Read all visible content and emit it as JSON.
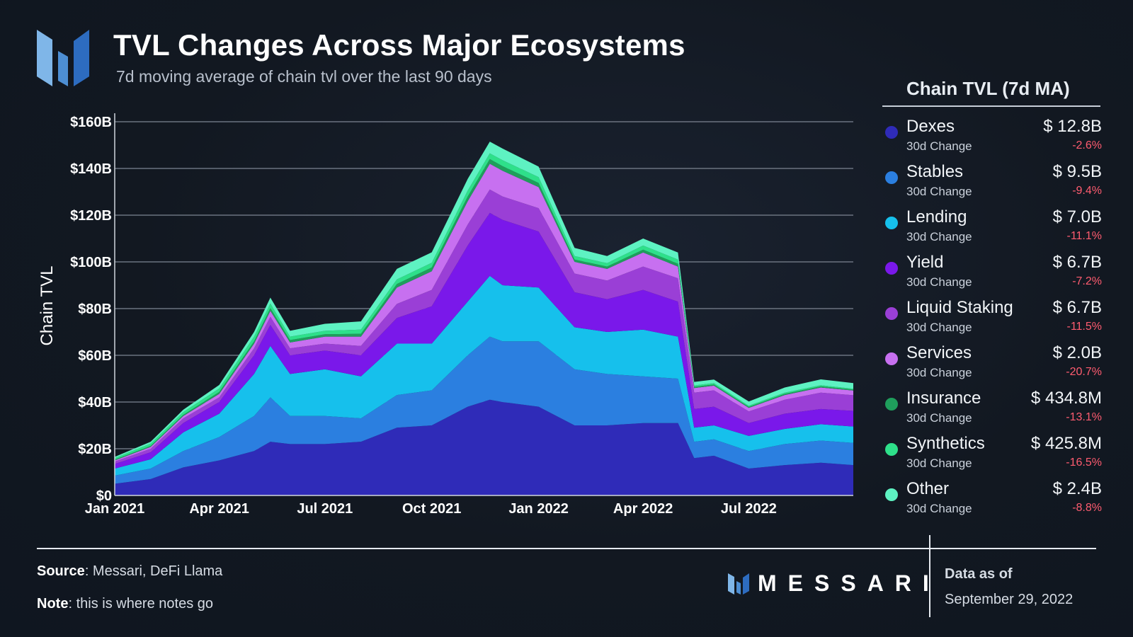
{
  "header": {
    "title": "TVL Changes Across Major Ecosystems",
    "subtitle": "7d moving average of chain tvl over the last 90 days"
  },
  "colors": {
    "dexes": "#2f2bb8",
    "stables": "#2b7fe0",
    "lending": "#16c0ec",
    "yield": "#7a18ea",
    "liquid_staking": "#9a3fd6",
    "services": "#c770f0",
    "insurance": "#1f9e5c",
    "synthetics": "#2ee08a",
    "other": "#5ef2c2"
  },
  "legend": {
    "title": "Chain TVL (7d MA)",
    "change_label": "30d Change",
    "items": [
      {
        "name": "Dexes",
        "value": "$ 12.8B",
        "change": "-2.6%",
        "color": "#2f2bb8"
      },
      {
        "name": "Stables",
        "value": "$ 9.5B",
        "change": "-9.4%",
        "color": "#2b7fe0"
      },
      {
        "name": "Lending",
        "value": "$ 7.0B",
        "change": "-11.1%",
        "color": "#16c0ec"
      },
      {
        "name": "Yield",
        "value": "$ 6.7B",
        "change": "-7.2%",
        "color": "#7a18ea"
      },
      {
        "name": "Liquid Staking",
        "value": "$ 6.7B",
        "change": "-11.5%",
        "color": "#9a3fd6"
      },
      {
        "name": "Services",
        "value": "$ 2.0B",
        "change": "-20.7%",
        "color": "#c770f0"
      },
      {
        "name": "Insurance",
        "value": "$ 434.8M",
        "change": "-13.1%",
        "color": "#1f9e5c"
      },
      {
        "name": "Synthetics",
        "value": "$ 425.8M",
        "change": "-16.5%",
        "color": "#2ee08a"
      },
      {
        "name": "Other",
        "value": "$ 2.4B",
        "change": "-8.8%",
        "color": "#5ef2c2"
      }
    ]
  },
  "footer": {
    "source_label": "Source",
    "source_text": ": Messari, DeFi Llama",
    "note_label": "Note",
    "note_text": ": this is where notes go",
    "brand": "MESSARI",
    "as_of_label": "Data as of",
    "as_of_date": "September 29, 2022"
  },
  "chart_data": {
    "type": "area",
    "stacked": true,
    "title": "TVL Changes Across Major Ecosystems",
    "subtitle": "7d moving average of chain tvl over the last 90 days",
    "ylabel": "Chain TVL",
    "xlabel": "",
    "ylim": [
      0,
      160
    ],
    "y_unit": "B USD",
    "yticks": [
      "$0",
      "$20B",
      "$40B",
      "$60B",
      "$80B",
      "$100B",
      "$120B",
      "$140B",
      "$160B"
    ],
    "xticks": [
      "Jan 2021",
      "Apr 2021",
      "Jul 2021",
      "Oct 2021",
      "Jan 2022",
      "Apr 2022",
      "Jul 2022"
    ],
    "grid": "horizontal",
    "x": [
      "2021-01-01",
      "2021-02-01",
      "2021-03-01",
      "2021-04-01",
      "2021-05-01",
      "2021-05-15",
      "2021-06-01",
      "2021-07-01",
      "2021-08-01",
      "2021-09-01",
      "2021-10-01",
      "2021-11-01",
      "2021-11-20",
      "2021-12-01",
      "2022-01-01",
      "2022-02-01",
      "2022-03-01",
      "2022-04-01",
      "2022-05-01",
      "2022-05-15",
      "2022-06-01",
      "2022-07-01",
      "2022-08-01",
      "2022-09-01",
      "2022-09-29"
    ],
    "series": [
      {
        "name": "Dexes",
        "values": [
          5.0,
          7.0,
          12.0,
          15.0,
          19.0,
          23.0,
          22.0,
          22.0,
          23.0,
          29.0,
          30.0,
          38.0,
          41.0,
          40.0,
          38.0,
          30.0,
          30.0,
          31.0,
          31.0,
          16.0,
          17.0,
          11.5,
          13.0,
          14.0,
          13.0
        ]
      },
      {
        "name": "Stables",
        "values": [
          3.5,
          4.5,
          7.0,
          10.0,
          15.0,
          19.0,
          12.0,
          12.0,
          10.0,
          14.0,
          15.0,
          22.0,
          27.0,
          26.0,
          28.0,
          24.0,
          22.0,
          20.0,
          19.0,
          7.0,
          7.0,
          7.5,
          9.0,
          9.5,
          9.5
        ]
      },
      {
        "name": "Lending",
        "values": [
          3.0,
          4.0,
          8.0,
          10.0,
          18.0,
          22.0,
          18.0,
          20.0,
          18.0,
          22.0,
          20.0,
          23.0,
          26.0,
          24.0,
          23.0,
          18.0,
          18.0,
          20.0,
          18.0,
          6.0,
          6.0,
          6.5,
          6.5,
          7.0,
          7.0
        ]
      },
      {
        "name": "Yield",
        "values": [
          2.0,
          3.0,
          4.0,
          5.0,
          8.0,
          9.0,
          8.0,
          8.0,
          9.0,
          11.0,
          16.0,
          24.0,
          27.0,
          28.0,
          24.0,
          15.0,
          14.0,
          17.0,
          15.0,
          8.0,
          8.0,
          5.5,
          6.5,
          6.5,
          6.7
        ]
      },
      {
        "name": "Liquid Staking",
        "values": [
          1.0,
          1.5,
          2.0,
          2.0,
          3.0,
          3.5,
          3.0,
          3.0,
          4.0,
          6.0,
          7.0,
          9.0,
          10.0,
          10.0,
          10.0,
          8.0,
          8.0,
          10.0,
          10.0,
          7.0,
          7.0,
          5.0,
          6.0,
          7.0,
          6.7
        ]
      },
      {
        "name": "Services",
        "values": [
          0.5,
          0.8,
          1.0,
          1.5,
          2.0,
          2.5,
          2.5,
          3.0,
          4.0,
          7.0,
          8.0,
          10.0,
          11.0,
          11.0,
          9.0,
          5.0,
          5.0,
          6.0,
          5.0,
          2.0,
          2.0,
          1.5,
          2.0,
          2.2,
          2.0
        ]
      },
      {
        "name": "Insurance",
        "values": [
          0.3,
          0.4,
          0.5,
          0.8,
          1.0,
          1.2,
          1.0,
          1.0,
          1.2,
          1.5,
          1.6,
          2.0,
          2.0,
          2.0,
          1.8,
          1.0,
          1.0,
          1.2,
          1.2,
          0.5,
          0.5,
          0.4,
          0.5,
          0.5,
          0.4
        ]
      },
      {
        "name": "Synthetics",
        "values": [
          0.7,
          1.0,
          1.2,
          1.5,
          2.0,
          2.0,
          1.5,
          1.5,
          1.8,
          2.0,
          2.0,
          2.5,
          2.5,
          2.5,
          2.5,
          1.5,
          1.5,
          1.8,
          1.8,
          0.6,
          0.6,
          0.5,
          0.5,
          0.5,
          0.4
        ]
      },
      {
        "name": "Other",
        "values": [
          0.5,
          0.8,
          1.0,
          1.5,
          2.0,
          2.5,
          2.5,
          3.0,
          3.5,
          4.5,
          4.5,
          5.0,
          5.0,
          5.0,
          4.5,
          3.5,
          3.0,
          3.0,
          3.0,
          1.5,
          1.5,
          1.8,
          2.2,
          2.5,
          2.4
        ]
      }
    ]
  }
}
